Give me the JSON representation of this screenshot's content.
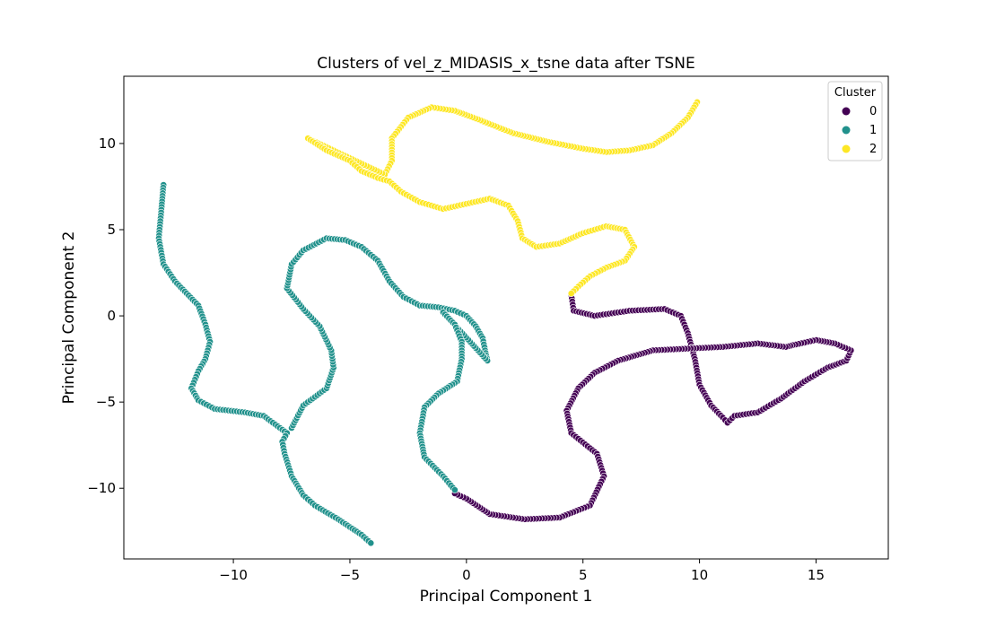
{
  "chart_data": {
    "type": "scatter",
    "title": "Clusters of vel_z_MIDASIS_x_tsne data after TSNE",
    "xlabel": "Principal Component 1",
    "ylabel": "Principal Component 2",
    "xlim": [
      -14.7,
      18.1
    ],
    "ylim": [
      -14.1,
      13.9
    ],
    "xticks": [
      -10,
      -5,
      0,
      5,
      10,
      15
    ],
    "yticks": [
      -10,
      -5,
      0,
      5,
      10
    ],
    "xtick_labels": [
      "−10",
      "−5",
      "0",
      "5",
      "10",
      "15"
    ],
    "ytick_labels": [
      "−10",
      "−5",
      "0",
      "5",
      "10"
    ],
    "grid": false,
    "legend": {
      "title": "Cluster",
      "placement": "top-right",
      "entries": [
        {
          "label": "0",
          "color": "#440154"
        },
        {
          "label": "1",
          "color": "#21918c"
        },
        {
          "label": "2",
          "color": "#fde725"
        }
      ]
    },
    "series": [
      {
        "name": "0",
        "color": "#440154",
        "path": [
          [
            4.5,
            1.2
          ],
          [
            4.6,
            0.3
          ],
          [
            5.5,
            0.0
          ],
          [
            7.0,
            0.3
          ],
          [
            8.5,
            0.4
          ],
          [
            9.2,
            0.0
          ],
          [
            9.5,
            -1.0
          ],
          [
            9.8,
            -2.5
          ],
          [
            10.0,
            -4.0
          ],
          [
            10.5,
            -5.2
          ],
          [
            11.0,
            -5.9
          ],
          [
            11.2,
            -6.2
          ],
          [
            11.5,
            -5.8
          ],
          [
            12.5,
            -5.6
          ],
          [
            13.5,
            -4.8
          ],
          [
            14.5,
            -3.8
          ],
          [
            15.5,
            -3.0
          ],
          [
            16.3,
            -2.6
          ],
          [
            16.5,
            -2.0
          ],
          [
            15.8,
            -1.6
          ],
          [
            15.0,
            -1.4
          ],
          [
            14.0,
            -1.7
          ],
          [
            13.7,
            -1.8
          ],
          [
            12.5,
            -1.6
          ],
          [
            11.0,
            -1.8
          ],
          [
            9.5,
            -1.9
          ],
          [
            8.0,
            -2.0
          ],
          [
            6.5,
            -2.6
          ],
          [
            5.5,
            -3.3
          ],
          [
            4.8,
            -4.2
          ],
          [
            4.3,
            -5.5
          ],
          [
            4.5,
            -6.8
          ],
          [
            5.6,
            -8.0
          ],
          [
            5.9,
            -9.3
          ],
          [
            5.3,
            -11.0
          ],
          [
            4.0,
            -11.7
          ],
          [
            2.5,
            -11.8
          ],
          [
            1.0,
            -11.5
          ],
          [
            0.0,
            -10.6
          ],
          [
            -0.5,
            -10.3
          ]
        ]
      },
      {
        "name": "1",
        "color": "#21918c",
        "path": [
          [
            -13.0,
            7.6
          ],
          [
            -13.1,
            6.0
          ],
          [
            -13.2,
            4.5
          ],
          [
            -13.0,
            3.0
          ],
          [
            -12.5,
            2.0
          ],
          [
            -12.0,
            1.3
          ],
          [
            -11.5,
            0.6
          ],
          [
            -11.2,
            -0.5
          ],
          [
            -11.0,
            -1.5
          ],
          [
            -11.2,
            -2.5
          ],
          [
            -11.5,
            -3.2
          ],
          [
            -11.8,
            -4.2
          ],
          [
            -11.5,
            -4.9
          ],
          [
            -10.8,
            -5.4
          ],
          [
            -9.5,
            -5.6
          ],
          [
            -8.7,
            -5.8
          ],
          [
            -8.2,
            -6.3
          ],
          [
            -7.7,
            -6.8
          ],
          [
            -7.9,
            -7.3
          ],
          [
            -7.8,
            -8.0
          ],
          [
            -7.5,
            -9.3
          ],
          [
            -7.0,
            -10.4
          ],
          [
            -6.5,
            -11.0
          ],
          [
            -5.5,
            -11.8
          ],
          [
            -4.5,
            -12.7
          ],
          [
            -4.0,
            -13.3
          ],
          [
            -7.5,
            -6.5
          ],
          [
            -7.0,
            -5.2
          ],
          [
            -6.0,
            -4.2
          ],
          [
            -5.7,
            -3.0
          ],
          [
            -5.8,
            -2.0
          ],
          [
            -6.3,
            -0.6
          ],
          [
            -7.0,
            0.4
          ],
          [
            -7.7,
            1.6
          ],
          [
            -7.5,
            3.0
          ],
          [
            -7.0,
            3.8
          ],
          [
            -6.0,
            4.5
          ],
          [
            -5.2,
            4.4
          ],
          [
            -4.5,
            4.0
          ],
          [
            -3.8,
            3.2
          ],
          [
            -3.3,
            2.0
          ],
          [
            -2.7,
            1.1
          ],
          [
            -2.0,
            0.6
          ],
          [
            -1.2,
            0.5
          ],
          [
            -0.5,
            0.3
          ],
          [
            0.0,
            0.0
          ],
          [
            0.4,
            -0.6
          ],
          [
            0.7,
            -1.3
          ],
          [
            0.8,
            -2.0
          ],
          [
            0.9,
            -2.6
          ],
          [
            -1.0,
            0.2
          ],
          [
            -0.5,
            -0.5
          ],
          [
            -0.2,
            -1.5
          ],
          [
            -0.2,
            -2.5
          ],
          [
            -0.4,
            -3.8
          ],
          [
            -1.2,
            -4.5
          ],
          [
            -1.8,
            -5.3
          ],
          [
            -2.0,
            -6.8
          ],
          [
            -1.8,
            -8.2
          ],
          [
            -1.0,
            -9.3
          ],
          [
            -0.5,
            -10.1
          ]
        ]
      },
      {
        "name": "2",
        "color": "#fde725",
        "path": [
          [
            9.9,
            12.4
          ],
          [
            9.5,
            11.5
          ],
          [
            8.8,
            10.6
          ],
          [
            8.0,
            9.9
          ],
          [
            7.0,
            9.6
          ],
          [
            6.0,
            9.5
          ],
          [
            5.0,
            9.7
          ],
          [
            3.5,
            10.1
          ],
          [
            2.0,
            10.6
          ],
          [
            0.5,
            11.4
          ],
          [
            -0.5,
            11.9
          ],
          [
            -1.5,
            12.1
          ],
          [
            -2.5,
            11.5
          ],
          [
            -3.2,
            10.3
          ],
          [
            -3.2,
            9.0
          ],
          [
            -3.5,
            8.2
          ],
          [
            -6.8,
            10.3
          ],
          [
            -6.0,
            9.6
          ],
          [
            -5.0,
            9.0
          ],
          [
            -4.5,
            8.4
          ],
          [
            -3.8,
            8.0
          ],
          [
            -3.3,
            7.8
          ],
          [
            -2.8,
            7.2
          ],
          [
            -2.0,
            6.6
          ],
          [
            -1.0,
            6.2
          ],
          [
            0.0,
            6.5
          ],
          [
            1.0,
            6.8
          ],
          [
            1.8,
            6.4
          ],
          [
            2.2,
            5.5
          ],
          [
            2.4,
            4.5
          ],
          [
            3.0,
            4.0
          ],
          [
            4.0,
            4.2
          ],
          [
            5.0,
            4.8
          ],
          [
            6.0,
            5.2
          ],
          [
            6.8,
            5.0
          ],
          [
            7.2,
            4.0
          ],
          [
            6.8,
            3.2
          ],
          [
            6.0,
            2.8
          ],
          [
            5.3,
            2.3
          ],
          [
            4.8,
            1.7
          ],
          [
            4.5,
            1.3
          ]
        ]
      }
    ]
  }
}
